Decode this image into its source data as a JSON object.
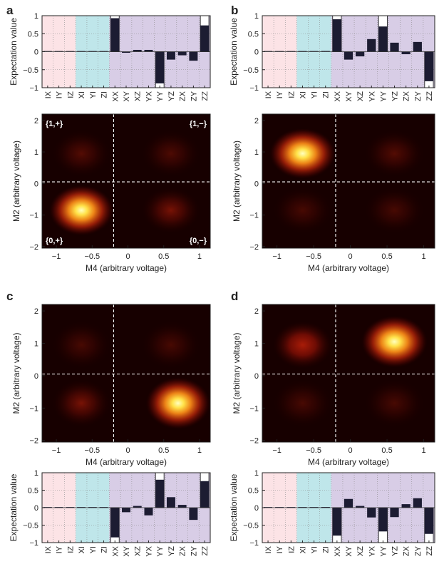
{
  "figure": {
    "panels": [
      {
        "letter": "a",
        "bar_chart": {
          "type": "bar",
          "ylabel": "Expectation value",
          "ylim": [
            -1,
            1
          ],
          "yticks": [
            -1,
            -0.5,
            0,
            0.5,
            1
          ],
          "categories": [
            "IX",
            "IY",
            "IZ",
            "XI",
            "YI",
            "ZI",
            "XX",
            "XY",
            "XZ",
            "YX",
            "YY",
            "YZ",
            "ZX",
            "ZY",
            "ZZ"
          ],
          "region_colors": [
            "#fce3e6",
            "#bfe6ea",
            "#d8cde6"
          ],
          "series": [
            {
              "values": [
                0,
                0,
                0,
                0.01,
                0.01,
                0.01,
                0.93,
                -0.03,
                0.05,
                0.05,
                -0.88,
                -0.22,
                -0.1,
                -0.25,
                0.73
              ]
            },
            {
              "values": [
                0,
                0,
                0,
                0,
                0,
                0,
                1,
                0,
                0,
                0,
                -1,
                0,
                0,
                0,
                1
              ]
            }
          ]
        },
        "heatmap": {
          "type": "heatmap",
          "xlabel": "M4 (arbitrary voltage)",
          "ylabel": "M2 (arbitrary voltage)",
          "xlim": [
            -1.2,
            1.15
          ],
          "ylim": [
            -2.05,
            2.2
          ],
          "xticks": [
            -1,
            -0.5,
            0,
            0.5,
            1
          ],
          "yticks": [
            -2,
            -1,
            0,
            1,
            2
          ],
          "threshold_x": -0.2,
          "threshold_y": 0.05,
          "blobs": [
            {
              "x": -0.65,
              "y": -0.85,
              "intensity": 1.0
            },
            {
              "x": -0.65,
              "y": 0.95,
              "intensity": 0.1
            },
            {
              "x": 0.6,
              "y": 0.95,
              "intensity": 0.09
            },
            {
              "x": 0.6,
              "y": -0.85,
              "intensity": 0.16
            }
          ],
          "quadrant_labels": {
            "top_left": "{1,+}",
            "top_right": "{1,−}",
            "bottom_left": "{0,+}",
            "bottom_right": "{0,−}"
          }
        }
      },
      {
        "letter": "b",
        "bar_chart": {
          "type": "bar",
          "ylabel": "Expectation value",
          "ylim": [
            -1,
            1
          ],
          "yticks": [
            -1,
            -0.5,
            0,
            0.5,
            1
          ],
          "categories": [
            "IX",
            "IY",
            "IZ",
            "XI",
            "YI",
            "ZI",
            "XX",
            "XY",
            "XZ",
            "YX",
            "YY",
            "YZ",
            "ZX",
            "ZY",
            "ZZ"
          ],
          "region_colors": [
            "#fce3e6",
            "#bfe6ea",
            "#d8cde6"
          ],
          "series": [
            {
              "values": [
                0,
                0,
                0,
                0.01,
                0.01,
                0.02,
                0.9,
                -0.22,
                -0.13,
                0.35,
                0.7,
                0.25,
                -0.07,
                0.27,
                -0.82
              ]
            },
            {
              "values": [
                0,
                0,
                0,
                0,
                0,
                0,
                1,
                0,
                0,
                0,
                1,
                0,
                0,
                0,
                -1
              ]
            }
          ]
        },
        "heatmap": {
          "type": "heatmap",
          "xlabel": "M4 (arbitrary voltage)",
          "ylabel": "M2 (arbitrary voltage)",
          "xlim": [
            -1.2,
            1.15
          ],
          "ylim": [
            -2.05,
            2.2
          ],
          "xticks": [
            -1,
            -0.5,
            0,
            0.5,
            1
          ],
          "yticks": [
            -2,
            -1,
            0,
            1,
            2
          ],
          "threshold_x": -0.2,
          "threshold_y": 0.05,
          "blobs": [
            {
              "x": -0.65,
              "y": 0.95,
              "intensity": 1.0
            },
            {
              "x": 0.6,
              "y": 0.95,
              "intensity": 0.1
            },
            {
              "x": -0.65,
              "y": -0.85,
              "intensity": 0.08
            },
            {
              "x": 0.6,
              "y": -0.85,
              "intensity": 0.08
            }
          ]
        }
      },
      {
        "letter": "c",
        "bar_chart": {
          "type": "bar",
          "ylabel": "Expectation value",
          "ylim": [
            -1,
            1
          ],
          "yticks": [
            -1,
            -0.5,
            0,
            0.5,
            1
          ],
          "categories": [
            "IX",
            "IY",
            "IZ",
            "XI",
            "YI",
            "ZI",
            "XX",
            "XY",
            "XZ",
            "YX",
            "YY",
            "YZ",
            "ZX",
            "ZY",
            "ZZ"
          ],
          "region_colors": [
            "#fce3e6",
            "#bfe6ea",
            "#d8cde6"
          ],
          "series": [
            {
              "values": [
                0,
                0,
                0,
                0.01,
                0.01,
                0.01,
                -0.85,
                -0.13,
                0.05,
                -0.22,
                0.8,
                0.3,
                0.08,
                -0.35,
                0.76
              ]
            },
            {
              "values": [
                0,
                0,
                0,
                0,
                0,
                0,
                -1,
                0,
                0,
                0,
                1,
                0,
                0,
                0,
                1
              ]
            }
          ]
        },
        "heatmap": {
          "type": "heatmap",
          "xlabel": "M4 (arbitrary voltage)",
          "ylabel": "M2 (arbitrary voltage)",
          "xlim": [
            -1.2,
            1.15
          ],
          "ylim": [
            -2.05,
            2.2
          ],
          "xticks": [
            -1,
            -0.5,
            0,
            0.5,
            1
          ],
          "yticks": [
            -2,
            -1,
            0,
            1,
            2
          ],
          "threshold_x": -0.2,
          "threshold_y": 0.05,
          "blobs": [
            {
              "x": 0.7,
              "y": -0.85,
              "intensity": 1.0
            },
            {
              "x": -0.65,
              "y": -0.85,
              "intensity": 0.16
            },
            {
              "x": -0.65,
              "y": 0.95,
              "intensity": 0.08
            },
            {
              "x": 0.6,
              "y": 0.95,
              "intensity": 0.08
            }
          ]
        }
      },
      {
        "letter": "d",
        "bar_chart": {
          "type": "bar",
          "ylabel": "Expectation value",
          "ylim": [
            -1,
            1
          ],
          "yticks": [
            -1,
            -0.5,
            0,
            0.5,
            1
          ],
          "categories": [
            "IX",
            "IY",
            "IZ",
            "XI",
            "YI",
            "ZI",
            "XX",
            "XY",
            "XZ",
            "YX",
            "YY",
            "YZ",
            "ZX",
            "ZY",
            "ZZ"
          ],
          "region_colors": [
            "#fce3e6",
            "#bfe6ea",
            "#d8cde6"
          ],
          "series": [
            {
              "values": [
                0,
                0,
                0,
                0.01,
                0.01,
                0.02,
                -0.8,
                0.25,
                0.05,
                -0.28,
                -0.68,
                -0.27,
                0.1,
                0.27,
                -0.75
              ]
            },
            {
              "values": [
                0,
                0,
                0,
                0,
                0,
                0,
                -1,
                0,
                0,
                0,
                -1,
                0,
                0,
                0,
                -1
              ]
            }
          ]
        },
        "heatmap": {
          "type": "heatmap",
          "xlabel": "M4 (arbitrary voltage)",
          "ylabel": "M2 (arbitrary voltage)",
          "xlim": [
            -1.2,
            1.15
          ],
          "ylim": [
            -2.05,
            2.2
          ],
          "xticks": [
            -1,
            -0.5,
            0,
            0.5,
            1
          ],
          "yticks": [
            -2,
            -1,
            0,
            1,
            2
          ],
          "threshold_x": -0.2,
          "threshold_y": 0.05,
          "blobs": [
            {
              "x": 0.6,
              "y": 1.05,
              "intensity": 1.0
            },
            {
              "x": -0.65,
              "y": 0.95,
              "intensity": 0.32
            },
            {
              "x": -0.65,
              "y": -0.85,
              "intensity": 0.08
            },
            {
              "x": 0.6,
              "y": -0.85,
              "intensity": 0.08
            }
          ]
        }
      }
    ]
  }
}
